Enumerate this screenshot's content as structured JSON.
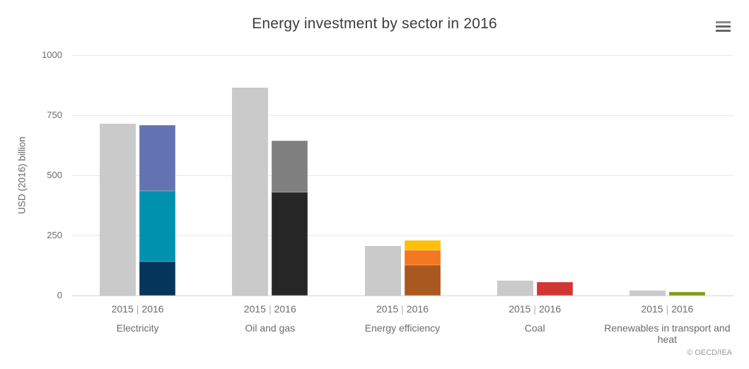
{
  "header": {
    "menu_button": "chart context menu"
  },
  "credits_text": "© OECD/IEA",
  "chart_data": {
    "type": "bar",
    "stacked": true,
    "title": "Energy investment by sector in 2016",
    "xlabel": "",
    "ylabel": "USD (2016) billion",
    "ylim": [
      0,
      1000
    ],
    "yticks": [
      0,
      250,
      500,
      750,
      1000
    ],
    "grid": "horizontal only",
    "legend": "none",
    "year_labels": [
      "2015",
      "2016"
    ],
    "year_label_separator": "|",
    "colors": {
      "bar_2015_gray": "#cacaca",
      "gridline": "#e8e8e8",
      "axis_line": "#d6d6d6"
    },
    "categories": [
      "Electricity",
      "Oil and gas",
      "Energy efficiency",
      "Coal",
      "Renewables in transport and heat"
    ],
    "groups": [
      {
        "category": "Electricity",
        "y2015": {
          "value": 715,
          "color": "#cacaca"
        },
        "y2016_segments": [
          {
            "value": 140,
            "color": "#06355c"
          },
          {
            "value": 295,
            "color": "#0091ae"
          },
          {
            "value": 275,
            "color": "#6373b1"
          }
        ]
      },
      {
        "category": "Oil and gas",
        "y2015": {
          "value": 865,
          "color": "#cacaca"
        },
        "y2016_segments": [
          {
            "value": 430,
            "color": "#262626"
          },
          {
            "value": 215,
            "color": "#7f7f7f"
          }
        ]
      },
      {
        "category": "Energy efficiency",
        "y2015": {
          "value": 207,
          "color": "#cacaca"
        },
        "y2016_segments": [
          {
            "value": 127,
            "color": "#a9581f"
          },
          {
            "value": 62,
            "color": "#f47721"
          },
          {
            "value": 40,
            "color": "#fdc00a"
          }
        ]
      },
      {
        "category": "Coal",
        "y2015": {
          "value": 63,
          "color": "#cacaca"
        },
        "y2016_segments": [
          {
            "value": 55,
            "color": "#d13632"
          }
        ]
      },
      {
        "category": "Renewables in transport and heat",
        "y2015": {
          "value": 22,
          "color": "#cacaca"
        },
        "y2016_segments": [
          {
            "value": 15,
            "color": "#7d9c11"
          }
        ]
      }
    ]
  }
}
